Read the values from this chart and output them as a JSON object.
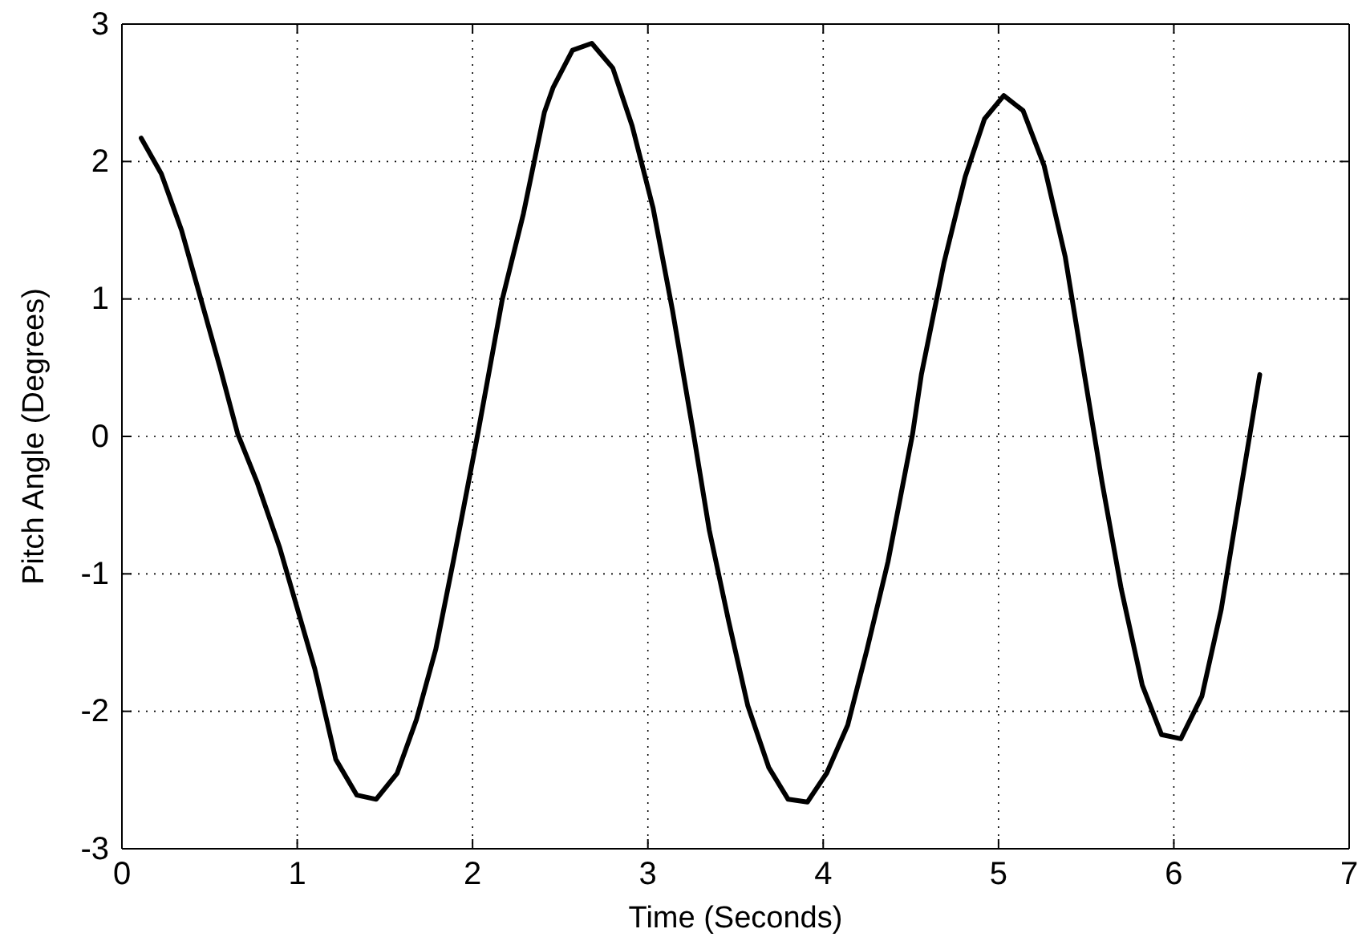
{
  "chart_data": {
    "type": "line",
    "xlabel": "Time (Seconds)",
    "ylabel": "Pitch Angle (Degrees)",
    "xlim": [
      0,
      7
    ],
    "xticks": [
      0,
      1,
      2,
      3,
      4,
      5,
      6,
      7
    ],
    "ylim": [
      -3,
      3
    ],
    "yticks": [
      -3,
      -2,
      -1,
      0,
      1,
      2,
      3
    ],
    "grid": true,
    "line_style": "solid",
    "marker": "none",
    "series": [
      {
        "color": "#000000",
        "x": [
          0.11,
          0.225,
          0.34,
          0.45,
          0.56,
          0.66,
          0.77,
          0.9,
          1.0,
          1.1,
          1.22,
          1.34,
          1.45,
          1.57,
          1.68,
          1.79,
          1.89,
          2.03,
          2.17,
          2.29,
          2.41,
          2.46,
          2.57,
          2.68,
          2.8,
          2.91,
          3.03,
          3.14,
          3.26,
          3.35,
          3.46,
          3.57,
          3.69,
          3.8,
          3.91,
          4.02,
          4.14,
          4.25,
          4.37,
          4.51,
          4.56,
          4.69,
          4.81,
          4.92,
          5.03,
          5.14,
          5.26,
          5.38,
          5.49,
          5.59,
          5.7,
          5.82,
          5.93,
          6.04,
          6.16,
          6.27,
          6.38,
          6.49
        ],
        "values": [
          2.17,
          1.91,
          1.5,
          1.0,
          0.5,
          0.02,
          -0.33,
          -0.81,
          -1.25,
          -1.69,
          -2.35,
          -2.61,
          -2.64,
          -2.45,
          -2.06,
          -1.55,
          -0.91,
          0.02,
          1.0,
          1.62,
          2.36,
          2.54,
          2.81,
          2.86,
          2.68,
          2.26,
          1.66,
          0.92,
          0.02,
          -0.68,
          -1.34,
          -1.96,
          -2.41,
          -2.64,
          -2.66,
          -2.45,
          -2.1,
          -1.55,
          -0.91,
          0.02,
          0.45,
          1.27,
          1.89,
          2.31,
          2.48,
          2.37,
          1.97,
          1.31,
          0.45,
          -0.33,
          -1.11,
          -1.81,
          -2.17,
          -2.2,
          -1.89,
          -1.26,
          -0.4,
          0.45
        ]
      }
    ]
  }
}
